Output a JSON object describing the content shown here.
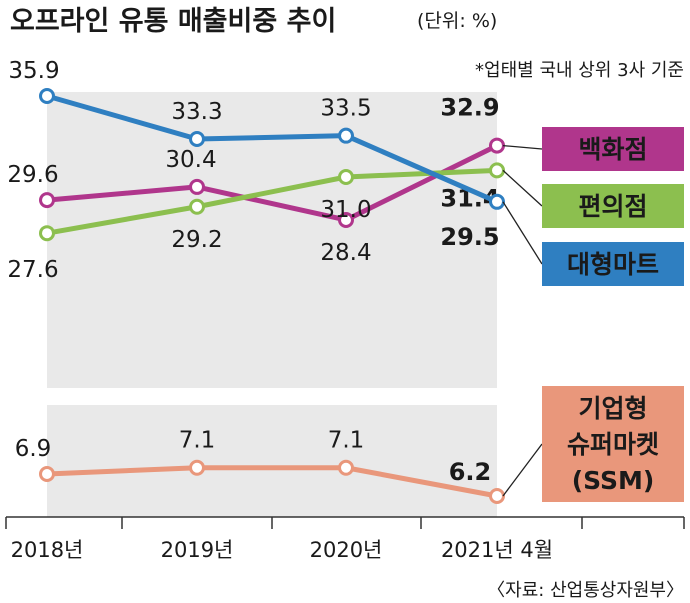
{
  "header": {
    "title": "오프라인 유통 매출비중 추이",
    "unit": "(단위: %)",
    "note": "*업태별 국내 상위 3사 기준"
  },
  "source": "〈자료: 산업통상자원부〉",
  "colors": {
    "panel": "#e9e9e9",
    "axis": "#333333",
    "text": "#1a1a1a"
  },
  "chart_data": [
    {
      "type": "line",
      "x": [
        "2018년",
        "2019년",
        "2020년",
        "2021년 4월"
      ],
      "ylim": [
        26,
        37.5
      ],
      "grid": false,
      "series": [
        {
          "key": "dept",
          "name": "백화점",
          "color": "#b0368c",
          "values": [
            29.6,
            30.4,
            28.4,
            32.9
          ],
          "labels": [
            "29.6",
            "30.4",
            "28.4",
            "32.9"
          ]
        },
        {
          "key": "conv",
          "name": "편의점",
          "color": "#8cbf4f",
          "values": [
            27.6,
            29.2,
            31.0,
            31.4
          ],
          "labels": [
            "27.6",
            "29.2",
            "31.0",
            "31.4"
          ]
        },
        {
          "key": "mart",
          "name": "대형마트",
          "color": "#2f7fc1",
          "values": [
            35.9,
            33.3,
            33.5,
            29.5
          ],
          "labels": [
            "35.9",
            "33.3",
            "33.5",
            "29.5"
          ]
        }
      ]
    },
    {
      "type": "line",
      "x": [
        "2018년",
        "2019년",
        "2020년",
        "2021년 4월"
      ],
      "ylim": [
        5.5,
        8.5
      ],
      "grid": false,
      "series": [
        {
          "key": "ssm",
          "name": "기업형 슈퍼마켓 (SSM)",
          "name_lines": [
            "기업형",
            "슈퍼마켓",
            "(SSM)"
          ],
          "color": "#e9977b",
          "values": [
            6.9,
            7.1,
            7.1,
            6.2
          ],
          "labels": [
            "6.9",
            "7.1",
            "7.1",
            "6.2"
          ]
        }
      ]
    }
  ]
}
